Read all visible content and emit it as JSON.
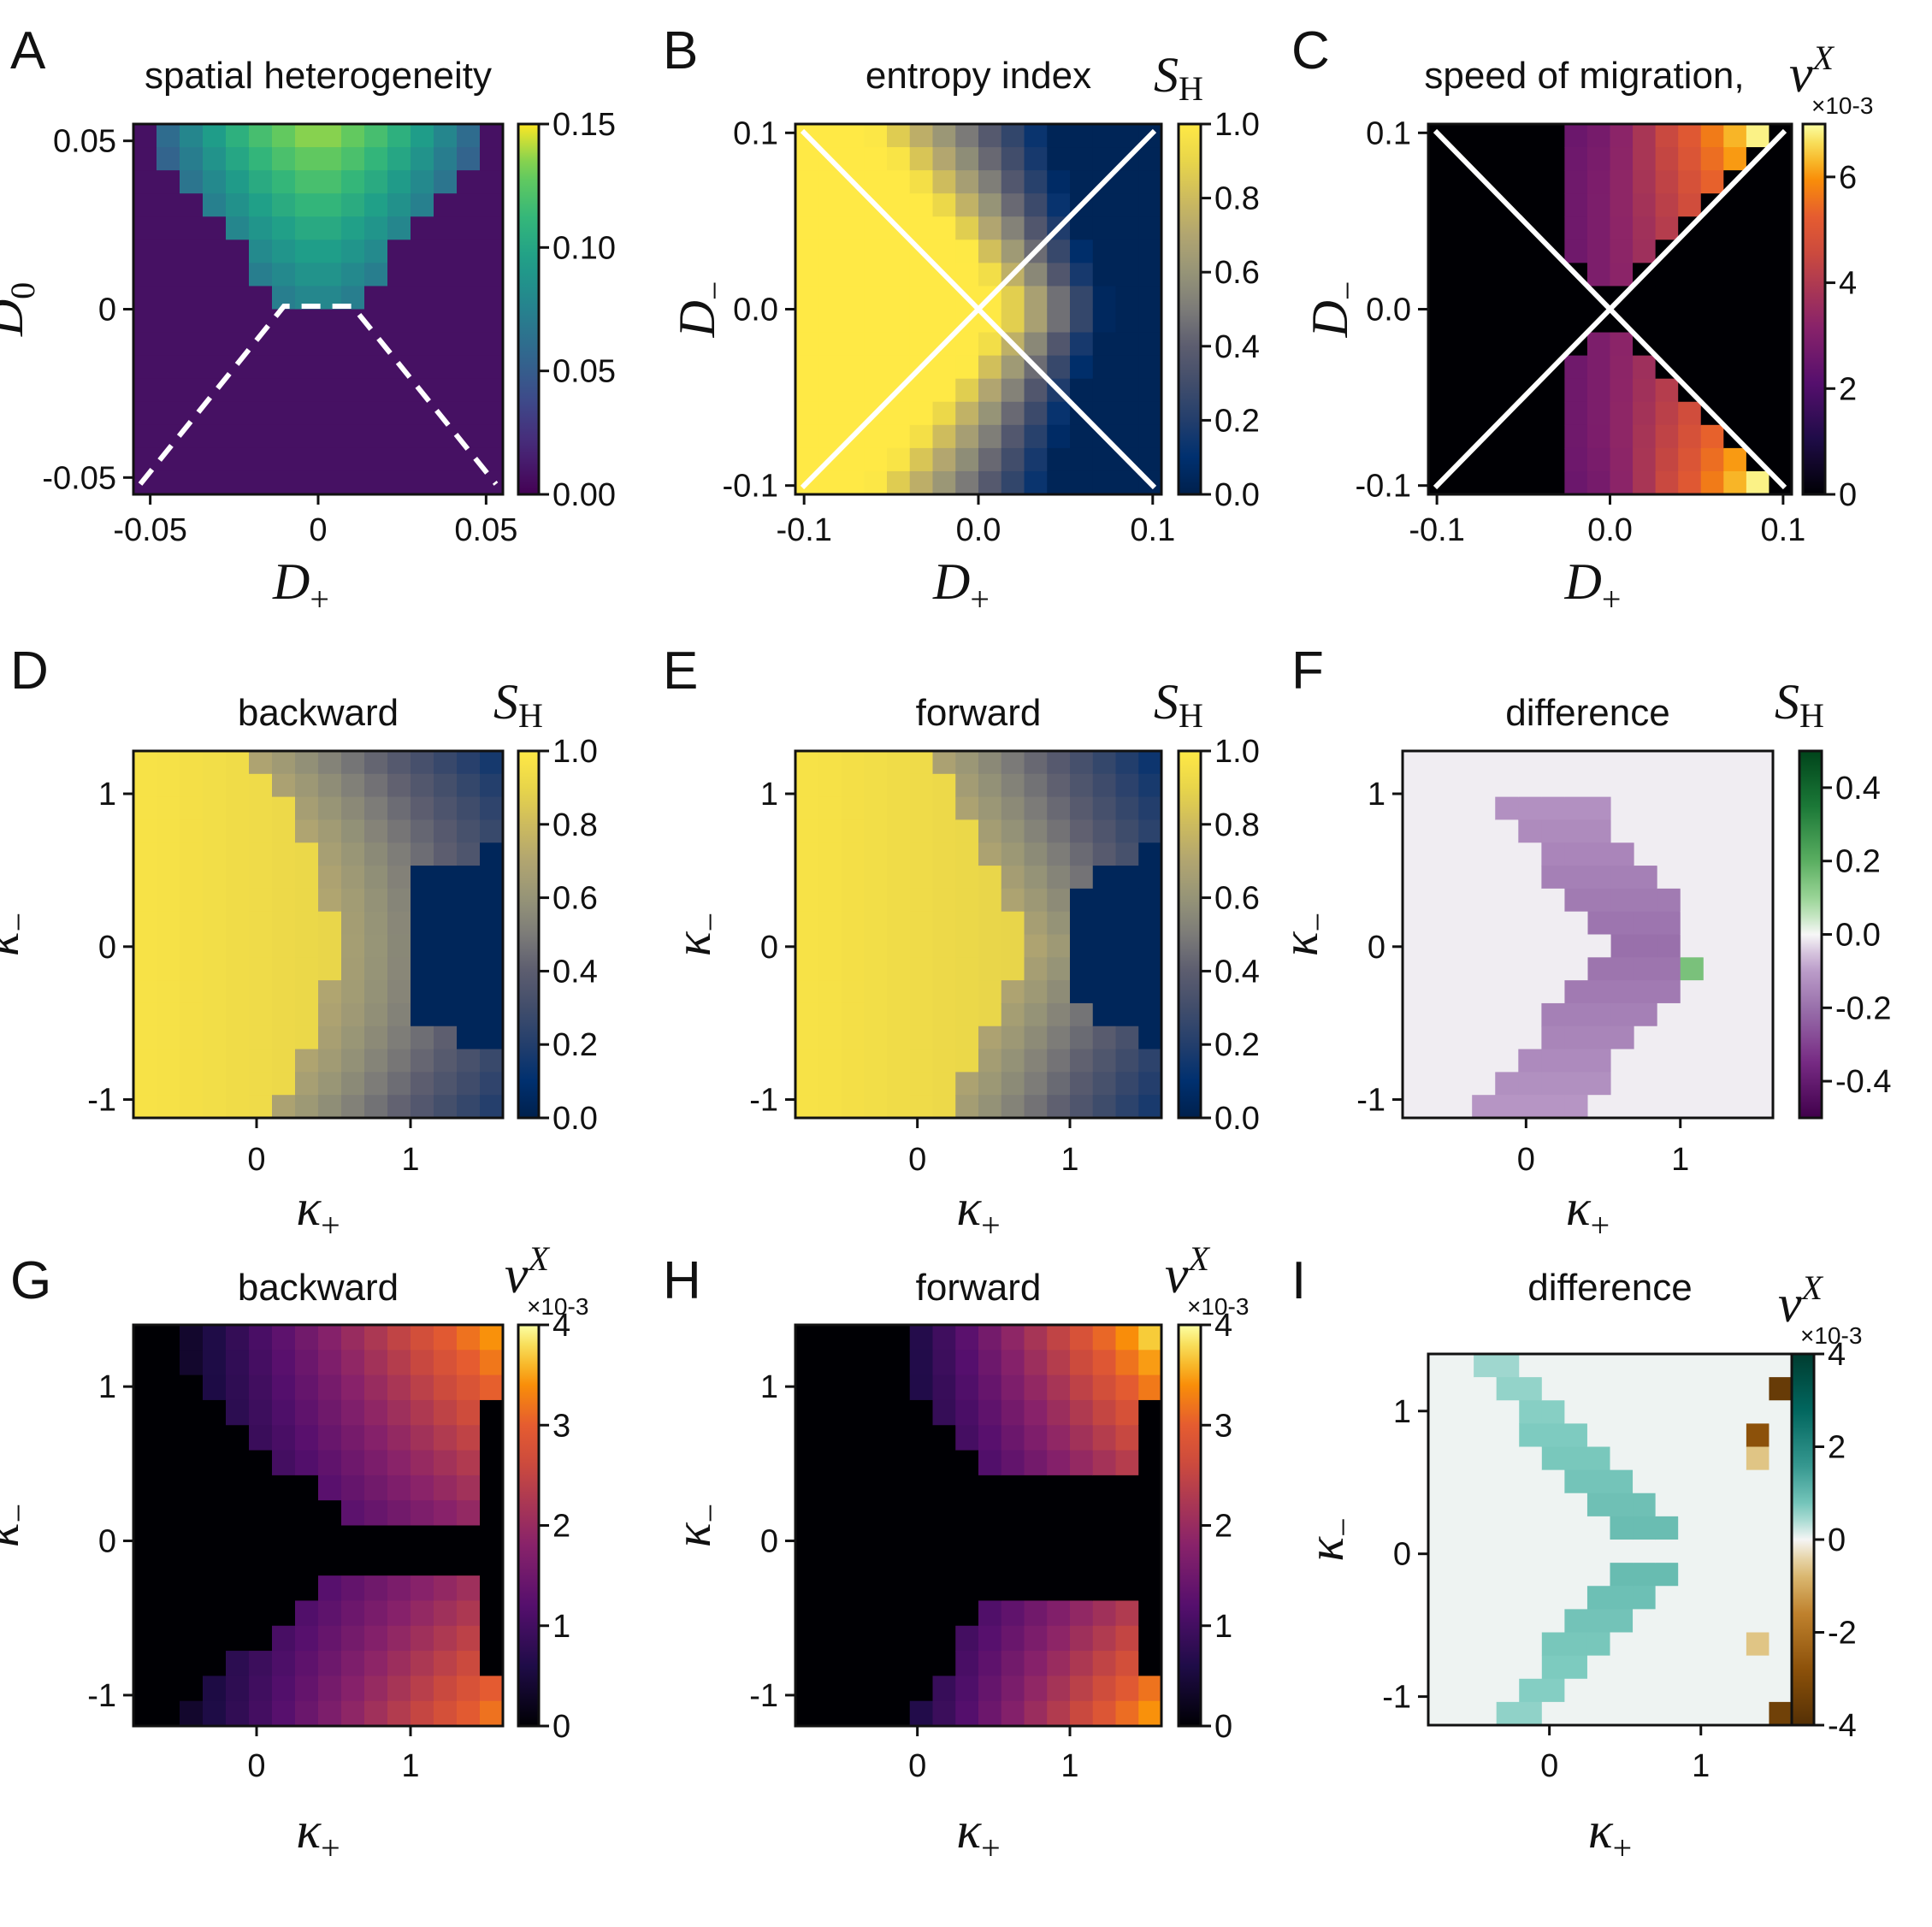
{
  "chart_data": [
    {
      "letter": "A",
      "type": "heatmap",
      "title": "spatial heterogeneity",
      "xlabel": "D",
      "xlabel_sub": "+",
      "ylabel": "D",
      "ylabel_sub": "0",
      "xticks": [
        "-0.05",
        "0",
        "0.05"
      ],
      "yticks": [
        "-0.05",
        "0",
        "0.05"
      ],
      "xlim": [
        -0.055,
        0.055
      ],
      "ylim": [
        -0.055,
        0.055
      ],
      "colormap": "viridis",
      "cbar_ticks": [
        "0.00",
        "0.05",
        "0.10",
        "0.15"
      ],
      "cbar_range": [
        0,
        0.15
      ],
      "cbar_label": "",
      "cbar_exp": "",
      "overlay": "dashed-boundary",
      "field": "A"
    },
    {
      "letter": "B",
      "type": "heatmap",
      "title": "entropy index",
      "xlabel": "D",
      "xlabel_sub": "+",
      "ylabel": "D",
      "ylabel_sub": "−",
      "xticks": [
        "-0.1",
        "0.0",
        "0.1"
      ],
      "yticks": [
        "-0.1",
        "0.0",
        "0.1"
      ],
      "xlim": [
        -0.105,
        0.105
      ],
      "ylim": [
        -0.105,
        0.105
      ],
      "colormap": "cividis",
      "cbar_ticks": [
        "0.0",
        "0.2",
        "0.4",
        "0.6",
        "0.8",
        "1.0"
      ],
      "cbar_range": [
        0,
        1
      ],
      "cbar_label": "S",
      "cbar_label_sub": "H",
      "cbar_exp": "",
      "overlay": "diagonals",
      "field": "B"
    },
    {
      "letter": "C",
      "type": "heatmap",
      "title": "speed of migration,",
      "xlabel": "D",
      "xlabel_sub": "+",
      "ylabel": "D",
      "ylabel_sub": "−",
      "xticks": [
        "-0.1",
        "0.0",
        "0.1"
      ],
      "yticks": [
        "-0.1",
        "0.0",
        "0.1"
      ],
      "xlim": [
        -0.105,
        0.105
      ],
      "ylim": [
        -0.105,
        0.105
      ],
      "colormap": "inferno",
      "cbar_ticks": [
        "0",
        "2",
        "4",
        "6"
      ],
      "cbar_range": [
        0,
        7
      ],
      "cbar_label": "v",
      "cbar_label_sup": "X",
      "cbar_exp": "×10-3",
      "overlay": "diagonals",
      "field": "C"
    },
    {
      "letter": "D",
      "type": "heatmap",
      "title": "backward",
      "xlabel": "κ",
      "xlabel_sub": "+",
      "ylabel": "κ",
      "ylabel_sub": "−",
      "xticks": [
        "0",
        "1"
      ],
      "yticks": [
        "-1",
        "0",
        "1"
      ],
      "xlim": [
        -0.8,
        1.6
      ],
      "ylim": [
        -1.12,
        1.28
      ],
      "colormap": "cividis",
      "cbar_ticks": [
        "0.0",
        "0.2",
        "0.4",
        "0.6",
        "0.8",
        "1.0"
      ],
      "cbar_range": [
        0,
        1
      ],
      "cbar_label": "S",
      "cbar_label_sub": "H",
      "cbar_exp": "",
      "overlay": "",
      "field": "D"
    },
    {
      "letter": "E",
      "type": "heatmap",
      "title": "forward",
      "xlabel": "κ",
      "xlabel_sub": "+",
      "ylabel": "κ",
      "ylabel_sub": "−",
      "xticks": [
        "0",
        "1"
      ],
      "yticks": [
        "-1",
        "0",
        "1"
      ],
      "xlim": [
        -0.8,
        1.6
      ],
      "ylim": [
        -1.12,
        1.28
      ],
      "colormap": "cividis",
      "cbar_ticks": [
        "0.0",
        "0.2",
        "0.4",
        "0.6",
        "0.8",
        "1.0"
      ],
      "cbar_range": [
        0,
        1
      ],
      "cbar_label": "S",
      "cbar_label_sub": "H",
      "cbar_exp": "",
      "overlay": "",
      "field": "E"
    },
    {
      "letter": "F",
      "type": "heatmap",
      "title": "difference",
      "xlabel": "κ",
      "xlabel_sub": "+",
      "ylabel": "κ",
      "ylabel_sub": "−",
      "xticks": [
        "0",
        "1"
      ],
      "yticks": [
        "-1",
        "0",
        "1"
      ],
      "xlim": [
        -0.8,
        1.6
      ],
      "ylim": [
        -1.12,
        1.28
      ],
      "colormap": "PRGn",
      "cbar_ticks": [
        "-0.4",
        "-0.2",
        "0.0",
        "0.2",
        "0.4"
      ],
      "cbar_range": [
        -0.5,
        0.5
      ],
      "cbar_label": "S",
      "cbar_label_sub": "H",
      "cbar_exp": "",
      "overlay": "",
      "field": "F"
    },
    {
      "letter": "G",
      "type": "heatmap",
      "title": "backward",
      "xlabel": "κ",
      "xlabel_sub": "+",
      "ylabel": "κ",
      "ylabel_sub": "−",
      "xticks": [
        "0",
        "1"
      ],
      "yticks": [
        "-1",
        "0",
        "1"
      ],
      "xlim": [
        -0.8,
        1.6
      ],
      "ylim": [
        -1.2,
        1.4
      ],
      "colormap": "inferno",
      "cbar_ticks": [
        "0",
        "1",
        "2",
        "3",
        "4"
      ],
      "cbar_range": [
        0,
        4
      ],
      "cbar_label": "v",
      "cbar_label_sup": "X",
      "cbar_exp": "×10-3",
      "overlay": "",
      "field": "G"
    },
    {
      "letter": "H",
      "type": "heatmap",
      "title": "forward",
      "xlabel": "κ",
      "xlabel_sub": "+",
      "ylabel": "κ",
      "ylabel_sub": "−",
      "xticks": [
        "0",
        "1"
      ],
      "yticks": [
        "-1",
        "0",
        "1"
      ],
      "xlim": [
        -0.8,
        1.6
      ],
      "ylim": [
        -1.2,
        1.4
      ],
      "colormap": "inferno",
      "cbar_ticks": [
        "0",
        "1",
        "2",
        "3",
        "4"
      ],
      "cbar_range": [
        0,
        4
      ],
      "cbar_label": "v",
      "cbar_label_sup": "X",
      "cbar_exp": "×10-3",
      "overlay": "",
      "field": "H"
    },
    {
      "letter": "I",
      "type": "heatmap",
      "title": "difference",
      "xlabel": "κ",
      "xlabel_sub": "+",
      "ylabel": "κ",
      "ylabel_sub": "−",
      "xticks": [
        "0",
        "1"
      ],
      "yticks": [
        "-1",
        "0",
        "1"
      ],
      "xlim": [
        -0.8,
        1.6
      ],
      "ylim": [
        -1.2,
        1.4
      ],
      "colormap": "BrBG",
      "cbar_ticks": [
        "-4",
        "-2",
        "0",
        "2",
        "4"
      ],
      "cbar_range": [
        -4,
        4
      ],
      "cbar_label": "v",
      "cbar_label_sup": "X",
      "cbar_exp": "×10-3",
      "overlay": "",
      "field": "I"
    }
  ]
}
